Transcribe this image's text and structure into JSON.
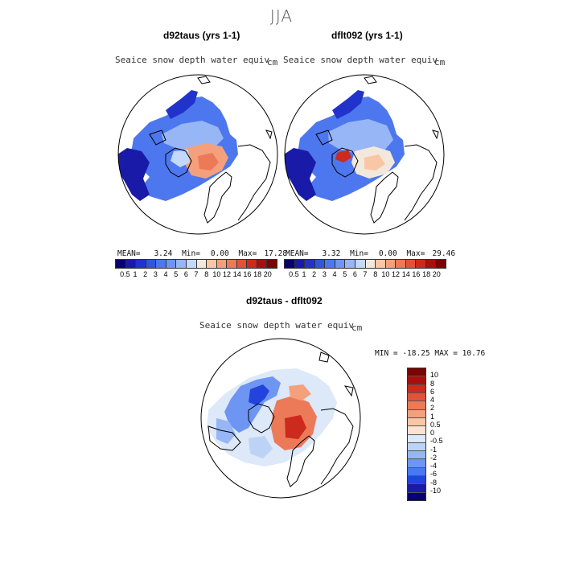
{
  "season": "JJA",
  "panels": [
    {
      "title": "d92taus (yrs 1-1)",
      "variable": "Seaice snow depth water equiv",
      "units": "cm",
      "stats": {
        "mean_label": "MEAN=",
        "mean": "3.24",
        "min_label": "Min=",
        "min": "0.00",
        "max_label": "Max=",
        "max": "17.28"
      }
    },
    {
      "title": "dflt092 (yrs 1-1)",
      "variable": "Seaice snow depth water equiv",
      "units": "cm",
      "stats": {
        "mean_label": "MEAN=",
        "mean": "3.32",
        "min_label": "Min=",
        "min": "0.00",
        "max_label": "Max=",
        "max": "29.46"
      }
    }
  ],
  "abs_colorbar": {
    "ticks": [
      "0.5",
      "1",
      "2",
      "3",
      "4",
      "5",
      "6",
      "7",
      "8",
      "10",
      "12",
      "14",
      "16",
      "18",
      "20"
    ],
    "colors": [
      "#08006e",
      "#1a1aa8",
      "#2233cc",
      "#3355dd",
      "#4d77ee",
      "#6f95f2",
      "#97b6f6",
      "#c3d8fa",
      "#f3e8dc",
      "#f9c6a6",
      "#f4a07c",
      "#ec7a58",
      "#e25238",
      "#cc2a1c",
      "#a8100e",
      "#7a0505"
    ]
  },
  "diff": {
    "title": "d92taus - dflt092",
    "variable": "Seaice snow depth water equiv",
    "units": "cm",
    "minmax": "MIN = -18.25 MAX =  10.76",
    "colorbar": {
      "labels": [
        "10",
        "8",
        "6",
        "4",
        "2",
        "1",
        "0.5",
        "0",
        "-0.5",
        "-1",
        "-2",
        "-4",
        "-6",
        "-8",
        "-10"
      ],
      "colors": [
        "#7a0505",
        "#a8100e",
        "#cc2a1c",
        "#e25238",
        "#ec7a58",
        "#f4a07c",
        "#f9c6a6",
        "#fbe2d2",
        "#dde8f8",
        "#bcd3f5",
        "#97b6f6",
        "#6f95f2",
        "#4d77ee",
        "#2244dd",
        "#1a1aa8",
        "#08006e"
      ]
    }
  },
  "chart_data": {
    "type": "heatmap",
    "title": "JJA",
    "projection": "north polar stereographic",
    "panels": [
      {
        "name": "d92taus (yrs 1-1)",
        "variable": "Seaice snow depth water equiv",
        "units": "cm",
        "mean": 3.24,
        "min": 0.0,
        "max": 17.28,
        "levels": [
          0.5,
          1,
          2,
          3,
          4,
          5,
          6,
          7,
          8,
          10,
          12,
          14,
          16,
          18,
          20
        ]
      },
      {
        "name": "dflt092 (yrs 1-1)",
        "variable": "Seaice snow depth water equiv",
        "units": "cm",
        "mean": 3.32,
        "min": 0.0,
        "max": 29.46,
        "levels": [
          0.5,
          1,
          2,
          3,
          4,
          5,
          6,
          7,
          8,
          10,
          12,
          14,
          16,
          18,
          20
        ]
      },
      {
        "name": "d92taus - dflt092",
        "variable": "Seaice snow depth water equiv",
        "units": "cm",
        "min": -18.25,
        "max": 10.76,
        "levels": [
          -10,
          -8,
          -6,
          -4,
          -2,
          -1,
          -0.5,
          0,
          0.5,
          1,
          2,
          4,
          6,
          8,
          10
        ]
      }
    ]
  }
}
